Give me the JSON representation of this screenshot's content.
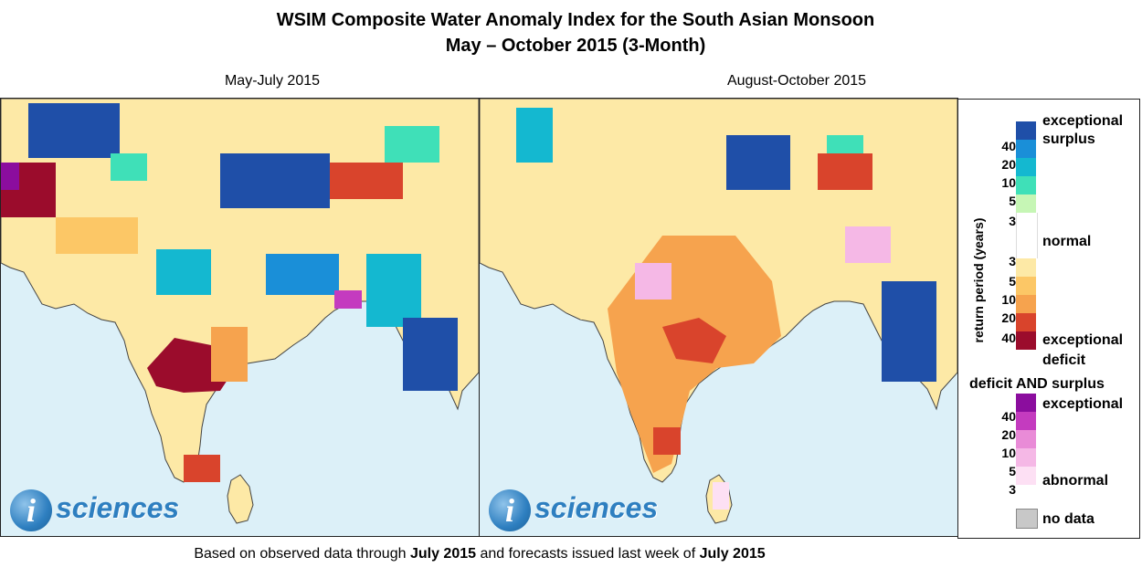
{
  "title": {
    "line1": "WSIM Composite Water Anomaly Index for the South Asian Monsoon",
    "line2": "May – October 2015 (3-Month)"
  },
  "panels": [
    {
      "label": "May-July 2015",
      "logo_text": "sciences",
      "logo_letter": "i"
    },
    {
      "label": "August-October 2015",
      "logo_text": "sciences",
      "logo_letter": "i"
    }
  ],
  "legend": {
    "axis_title": "return period (years)",
    "surplus_top": "exceptional",
    "surplus_top2": "surplus",
    "normal": "normal",
    "deficit_bottom": "exceptional",
    "deficit_bottom2": "deficit",
    "both_title": "deficit AND surplus",
    "both_top": "exceptional",
    "both_bottom": "abnormal",
    "no_data": "no data",
    "surplus_ticks": [
      "40",
      "20",
      "10",
      "5",
      "3"
    ],
    "deficit_ticks": [
      "3",
      "5",
      "10",
      "20",
      "40"
    ],
    "both_ticks": [
      "40",
      "20",
      "10",
      "5",
      "3"
    ],
    "colors": {
      "surplus": [
        "#1f4fa8",
        "#1a8fd8",
        "#14b8d0",
        "#3fe0b8",
        "#c6f6b5"
      ],
      "normal": "#ffffff",
      "deficit": [
        "#fde9a6",
        "#fcc766",
        "#f6a34e",
        "#d9442c",
        "#9b0c2c"
      ],
      "both": [
        "#8b0d9e",
        "#c43bbf",
        "#e98bd7",
        "#f5b8e6",
        "#fde0f4"
      ],
      "no_data": "#c8c8c8",
      "water": "#dcf0f8"
    }
  },
  "footer": {
    "prefix": "Based on observed data through ",
    "bold1": "July 2015",
    "middle": " and forecasts issued last week of ",
    "bold2": "July 2015"
  }
}
